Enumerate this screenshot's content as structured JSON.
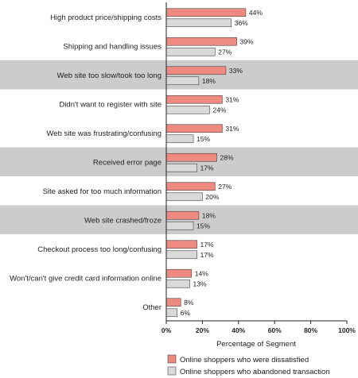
{
  "chart_data": {
    "type": "bar",
    "orientation": "horizontal",
    "categories": [
      "High product price/shipping costs",
      "Shipping and handling issues",
      "Web site too slow/took too long",
      "Didn't want to register with site",
      "Web site was frustrating/confusing",
      "Received error page",
      "Site asked for too much information",
      "Web site crashed/froze",
      "Checkout process too long/confusing",
      "Won't/can't give credit card information online",
      "Other"
    ],
    "shaded_rows": [
      2,
      5,
      7
    ],
    "series": [
      {
        "name": "Online shoppers who were dissatisfied",
        "values": [
          44,
          39,
          33,
          31,
          31,
          28,
          27,
          18,
          17,
          14,
          8
        ],
        "value_labels": [
          "44%",
          "39%",
          "33%",
          "31%",
          "31%",
          "28%",
          "27%",
          "18%",
          "17%",
          "14%",
          "8%"
        ],
        "color": "#ef8a80"
      },
      {
        "name": "Online shoppers who abandoned transaction",
        "values": [
          36,
          27,
          18,
          24,
          15,
          17,
          20,
          15,
          17,
          13,
          6
        ],
        "value_labels": [
          "36%",
          "27%",
          "18%",
          "24%",
          "15%",
          "17%",
          "20%",
          "15%",
          "17%",
          "13%",
          "6%"
        ],
        "color": "#d9d9d9"
      }
    ],
    "xlim": [
      0,
      100
    ],
    "xticks": [
      "0%",
      "20%",
      "40%",
      "60%",
      "80%",
      "100%"
    ],
    "xlabel": "Percentage of Segment",
    "ylabel": "",
    "title": "",
    "grid": false,
    "legend_position": "bottom",
    "colors": {
      "shade": "#cccccc",
      "bar_stroke": "#444444",
      "axis": "#222222"
    }
  }
}
